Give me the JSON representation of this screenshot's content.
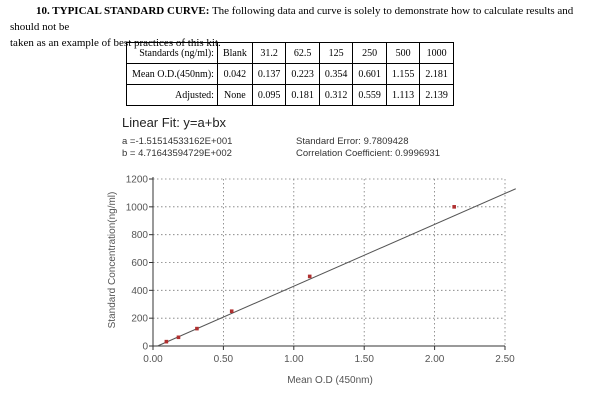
{
  "intro": {
    "heading": "10. TYPICAL STANDARD CURVE:",
    "line1": " The following data and curve is solely to demonstrate how to calculate results and should not be",
    "line2": "taken as an example of best practices of this kit."
  },
  "table": {
    "rows": [
      {
        "label": "Standards (ng/ml):",
        "cells": [
          "Blank",
          "31.2",
          "62.5",
          "125",
          "250",
          "500",
          "1000"
        ]
      },
      {
        "label": "Mean O.D.(450nm):",
        "cells": [
          "0.042",
          "0.137",
          "0.223",
          "0.354",
          "0.601",
          "1.155",
          "2.181"
        ]
      },
      {
        "label": "Adjusted:",
        "cells": [
          "None",
          "0.095",
          "0.181",
          "0.312",
          "0.559",
          "1.113",
          "2.139"
        ]
      }
    ]
  },
  "fit": {
    "title": "Linear Fit: y=a+bx",
    "a": "a =-1.51514533162E+001",
    "b": "b = 4.71643594729E+002",
    "std_error": "Standard Error: 9.7809428",
    "corr_coef": "Correlation Coefficient: 0.9996931"
  },
  "chart_data": {
    "type": "scatter",
    "xlabel": "Mean O.D (450nm)",
    "ylabel": "Standard Concentration(ng/ml)",
    "xlim": [
      0,
      2.5
    ],
    "ylim": [
      0,
      1200
    ],
    "xticks": [
      "0.00",
      "0.50",
      "1.00",
      "1.50",
      "2.00",
      "2.50"
    ],
    "yticks": [
      "0",
      "200",
      "400",
      "600",
      "800",
      "1000",
      "1200"
    ],
    "grid": true,
    "points": [
      {
        "x": 0.095,
        "y": 31.2
      },
      {
        "x": 0.181,
        "y": 62.5
      },
      {
        "x": 0.312,
        "y": 125
      },
      {
        "x": 0.559,
        "y": 250
      },
      {
        "x": 1.113,
        "y": 500
      },
      {
        "x": 2.139,
        "y": 1000
      }
    ],
    "fit_line": {
      "intercept": -15.1514533162,
      "slope": 471.643594729
    },
    "colors": {
      "point": "#b03030",
      "line": "#555555",
      "grid": "#7a7a7a",
      "axis": "#333333"
    }
  }
}
